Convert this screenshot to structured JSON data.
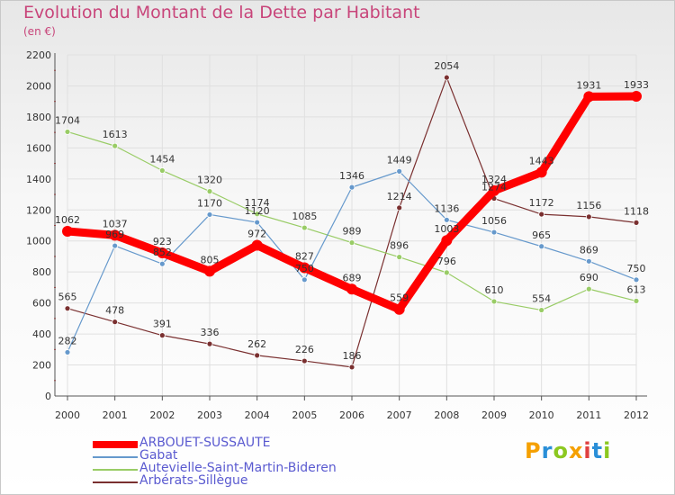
{
  "title": "Evolution du Montant de la Dette par Habitant",
  "subtitle": "(en €)",
  "logo": {
    "text": "Proxiti",
    "colors": [
      "#f5a000",
      "#2a8fd8",
      "#8cc820",
      "#f5a000",
      "#e04040",
      "#2a8fd8",
      "#8cc820"
    ]
  },
  "chart_data": {
    "type": "line",
    "x": [
      2000,
      2001,
      2002,
      2003,
      2004,
      2005,
      2006,
      2007,
      2008,
      2009,
      2010,
      2011,
      2012
    ],
    "ylim": [
      0,
      2200
    ],
    "yticks": [
      0,
      200,
      400,
      600,
      800,
      1000,
      1200,
      1400,
      1600,
      1800,
      2000,
      2200
    ],
    "grid": true,
    "legend_position": "bottom",
    "series": [
      {
        "name": "ARBOUET-SUSSAUTE",
        "color": "#ff0000",
        "values": [
          1062,
          1037,
          923,
          805,
          972,
          827,
          689,
          559,
          1003,
          1324,
          1443,
          1931,
          1933
        ]
      },
      {
        "name": "Gabat",
        "color": "#6699cc",
        "values": [
          282,
          969,
          852,
          1170,
          1120,
          750,
          1346,
          1449,
          1136,
          1056,
          965,
          869,
          750
        ]
      },
      {
        "name": "Autevielle-Saint-Martin-Bideren",
        "color": "#99cc66",
        "values": [
          1704,
          1613,
          1454,
          1320,
          1174,
          1085,
          989,
          896,
          796,
          610,
          554,
          690,
          613
        ]
      },
      {
        "name": "Arbérats-Sillègue",
        "color": "#7a3030",
        "values": [
          565,
          478,
          391,
          336,
          262,
          226,
          186,
          1214,
          2054,
          1274,
          1172,
          1156,
          1118
        ]
      }
    ]
  }
}
